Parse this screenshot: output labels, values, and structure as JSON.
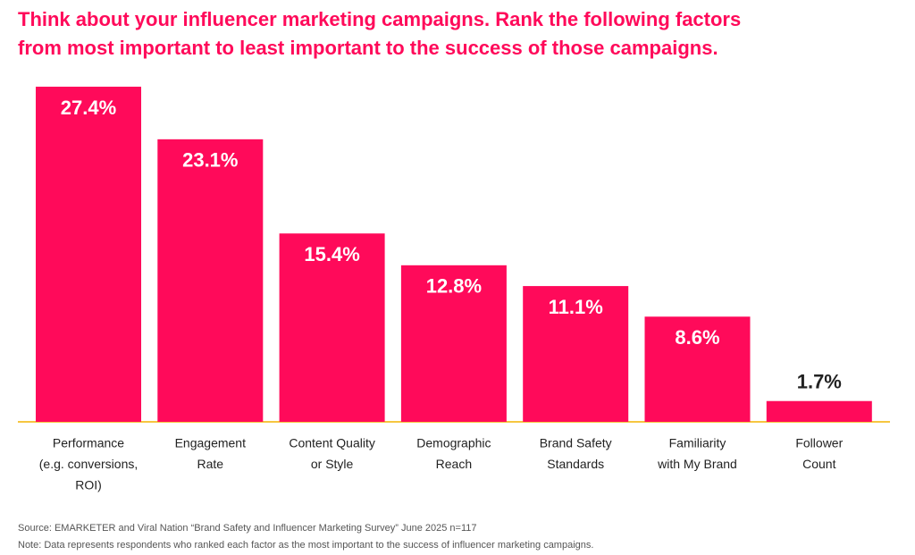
{
  "chart_data": {
    "type": "bar",
    "title": [
      "Think about your influencer marketing campaigns. Rank the following factors",
      "from most important to least important to the success of those campaigns."
    ],
    "categories": [
      [
        "Performance",
        "(e.g. conversions,",
        "ROI)"
      ],
      [
        "Engagement",
        "Rate"
      ],
      [
        "Content Quality",
        "or Style"
      ],
      [
        "Demographic",
        "Reach"
      ],
      [
        "Brand Safety",
        "Standards"
      ],
      [
        "Familiarity",
        "with My Brand"
      ],
      [
        "Follower",
        "Count"
      ]
    ],
    "values": [
      27.4,
      23.1,
      15.4,
      12.8,
      11.1,
      8.6,
      1.7
    ],
    "value_labels": [
      "27.4%",
      "23.1%",
      "15.4%",
      "12.8%",
      "11.1%",
      "8.6%",
      "1.7%"
    ],
    "color": "#ff0a5a",
    "source": "Source: EMARKETER and Viral Nation “Brand Safety and Influencer Marketing Survey” June 2025 n=117",
    "note": "Note: Data represents respondents who ranked each factor as the most important to the success of influencer marketing campaigns."
  }
}
